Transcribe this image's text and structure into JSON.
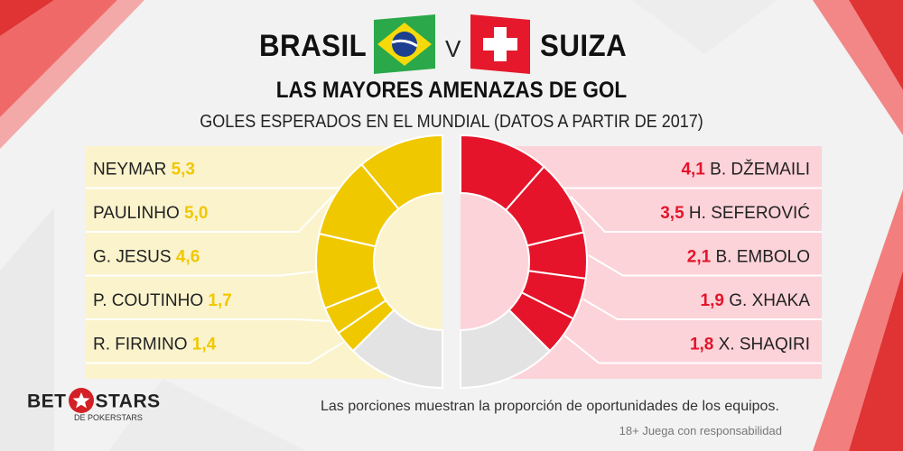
{
  "header": {
    "team_left": "BRASIL",
    "vs": "V",
    "team_right": "SUIZA",
    "title": "LAS MAYORES AMENAZAS DE GOL",
    "subtitle": "GOLES ESPERADOS EN EL MUNDIAL (DATOS A PARTIR DE 2017)"
  },
  "colors": {
    "brasil": "#f0c800",
    "brasil_panel": "#faf3cc",
    "suiza": "#e5142a",
    "suiza_panel": "#fcd3d9",
    "rest": "#e3e3e3",
    "accent_red": "#e0202b"
  },
  "chart_data": [
    {
      "type": "pie",
      "team": "BRASIL",
      "categories": [
        "NEYMAR",
        "PAULINHO",
        "G. JESUS",
        "P. COUTINHO",
        "R. FIRMINO"
      ],
      "values": [
        5.3,
        5.0,
        4.6,
        1.7,
        1.4
      ],
      "value_labels": [
        "5,3",
        "5,0",
        "4,6",
        "1,7",
        "1,4"
      ],
      "remainder_share": 0.25
    },
    {
      "type": "pie",
      "team": "SUIZA",
      "categories": [
        "B. DŽEMAILI",
        "H. SEFEROVIĆ",
        "B. EMBOLO",
        "G. XHAKA",
        "X. SHAQIRI"
      ],
      "values": [
        4.1,
        3.5,
        2.1,
        1.9,
        1.8
      ],
      "value_labels": [
        "4,1",
        "3,5",
        "2,1",
        "1,9",
        "1,8"
      ],
      "remainder_share": 0.25
    }
  ],
  "footer": {
    "note": "Las porciones muestran la proporción de oportunidades de los equipos.",
    "disclaimer": "18+ Juega con responsabilidad",
    "logo_left": "BET",
    "logo_right": "STARS",
    "logo_sub": "DE POKERSTARS"
  }
}
